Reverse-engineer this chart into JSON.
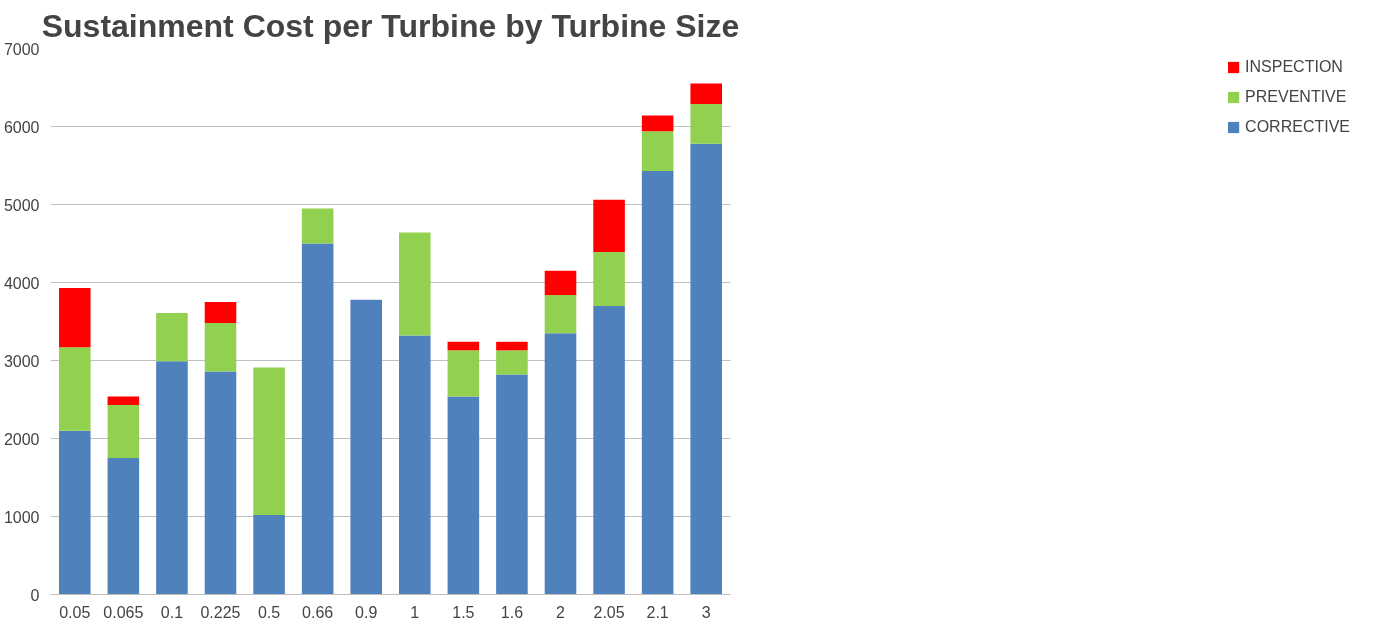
{
  "chart_data": {
    "type": "bar",
    "title": "Sustainment Cost per Turbine by Turbine Size",
    "stacked": true,
    "categories": [
      "0.05",
      "0.065",
      "0.1",
      "0.225",
      "0.5",
      "0.66",
      "0.9",
      "1",
      "1.5",
      "1.6",
      "2",
      "2.05",
      "2.1",
      "3"
    ],
    "series": [
      {
        "name": "CORRECTIVE",
        "color": "#4f81bd",
        "values": [
          2100,
          1750,
          2990,
          2860,
          1020,
          4500,
          3780,
          3320,
          2540,
          2820,
          3350,
          3700,
          5430,
          5780
        ]
      },
      {
        "name": "PREVENTIVE",
        "color": "#92d050",
        "values": [
          1070,
          680,
          620,
          620,
          1890,
          450,
          null,
          1320,
          590,
          310,
          490,
          690,
          510,
          510
        ]
      },
      {
        "name": "INSPECTION",
        "color": "#ff0000",
        "values": [
          760,
          110,
          null,
          270,
          null,
          null,
          null,
          null,
          110,
          110,
          310,
          670,
          200,
          260
        ]
      }
    ],
    "ylim": [
      0,
      7000
    ],
    "yticks": [
      0,
      1000,
      2000,
      3000,
      4000,
      5000,
      6000,
      7000
    ],
    "grid": "y",
    "legend": "right"
  }
}
